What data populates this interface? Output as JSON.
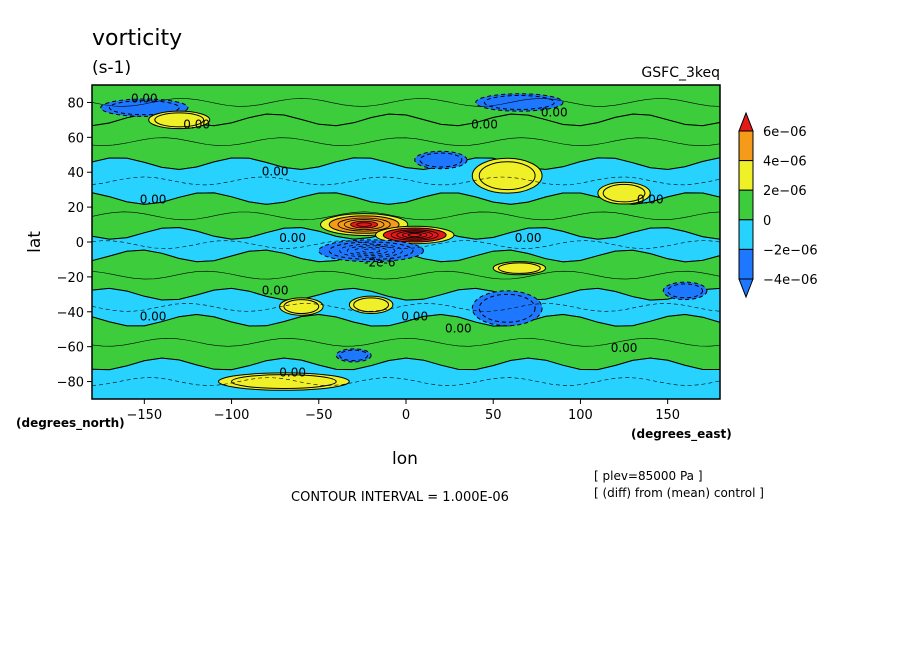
{
  "chart_data": {
    "type": "heatmap",
    "title": "vorticity",
    "units": "(s-1)",
    "model": "GSFC_3keq",
    "xlabel": "lon",
    "ylabel": "lat",
    "x_units": "(degrees_east)",
    "y_units": "(degrees_north)",
    "xlim": [
      -180,
      180
    ],
    "ylim": [
      -90,
      90
    ],
    "x_ticks": [
      -150,
      -100,
      -50,
      0,
      50,
      100,
      150
    ],
    "y_ticks": [
      80,
      60,
      40,
      20,
      0,
      -20,
      -40,
      -60,
      -80
    ],
    "x_tick_labels": [
      "−150",
      "−100",
      "−50",
      "0",
      "50",
      "100",
      "150"
    ],
    "y_tick_labels": [
      "80",
      "60",
      "40",
      "20",
      "0",
      "−20",
      "−40",
      "−60",
      "−80"
    ],
    "colorbar": {
      "levels": [
        -4e-06,
        -2e-06,
        0,
        2e-06,
        4e-06,
        6e-06
      ],
      "labels": [
        "−4e−06",
        "−2e−06",
        "0",
        "2e−06",
        "4e−06",
        "6e−06"
      ],
      "colors": [
        "#1e78ff",
        "#28d2ff",
        "#ffffff",
        "#3ccc3c",
        "#f0f028",
        "#f59a19",
        "#e61919"
      ]
    },
    "contour_interval_text": "CONTOUR INTERVAL = 1.000E-06",
    "annotations": [
      "[ plev=85000 Pa ]",
      "[ (diff) from (mean) control ]"
    ],
    "contour_labels": [
      "0.00",
      "-2e-6"
    ],
    "bands": [
      {
        "lat": [
          70,
          90
        ],
        "value": 0
      },
      {
        "lat": [
          45,
          70
        ],
        "value": 1e-06
      },
      {
        "lat": [
          25,
          45
        ],
        "value": -1e-06
      },
      {
        "lat": [
          5,
          25
        ],
        "value": 1e-06
      },
      {
        "lat": [
          -8,
          5
        ],
        "value": -1e-06
      },
      {
        "lat": [
          -30,
          -8
        ],
        "value": 1e-06
      },
      {
        "lat": [
          -45,
          -30
        ],
        "value": -1e-06
      },
      {
        "lat": [
          -70,
          -45
        ],
        "value": 1e-06
      },
      {
        "lat": [
          -90,
          -70
        ],
        "value": -1e-06
      }
    ],
    "anomalies": [
      {
        "lon": -150,
        "lat": 77,
        "dlon": 20,
        "dlat": 4,
        "value": -3e-06
      },
      {
        "lon": -130,
        "lat": 70,
        "dlon": 14,
        "dlat": 4,
        "value": 3e-06
      },
      {
        "lon": 65,
        "lat": 80,
        "dlon": 20,
        "dlat": 4,
        "value": -3e-06
      },
      {
        "lon": 58,
        "lat": 38,
        "dlon": 16,
        "dlat": 8,
        "value": 3e-06
      },
      {
        "lon": 125,
        "lat": 28,
        "dlon": 12,
        "dlat": 5,
        "value": 3e-06
      },
      {
        "lon": 20,
        "lat": 47,
        "dlon": 12,
        "dlat": 4,
        "value": -3e-06
      },
      {
        "lon": -24,
        "lat": 10,
        "dlon": 20,
        "dlat": 5,
        "value": 4e-06
      },
      {
        "lon": 5,
        "lat": 4,
        "dlon": 18,
        "dlat": 4,
        "value": 7e-06
      },
      {
        "lon": -20,
        "lat": -5,
        "dlon": 24,
        "dlat": 5,
        "value": -5e-06
      },
      {
        "lon": 65,
        "lat": -15,
        "dlon": 12,
        "dlat": 3,
        "value": 3e-06
      },
      {
        "lon": 58,
        "lat": -38,
        "dlon": 16,
        "dlat": 8,
        "value": -3e-06
      },
      {
        "lon": -60,
        "lat": -37,
        "dlon": 10,
        "dlat": 4,
        "value": 3e-06
      },
      {
        "lon": -20,
        "lat": -36,
        "dlon": 10,
        "dlat": 4,
        "value": 3e-06
      },
      {
        "lon": -30,
        "lat": -65,
        "dlon": 8,
        "dlat": 3,
        "value": -3e-06
      },
      {
        "lon": 160,
        "lat": -28,
        "dlon": 10,
        "dlat": 4,
        "value": -3e-06
      },
      {
        "lon": -70,
        "lat": -80,
        "dlon": 30,
        "dlat": 4,
        "value": 3e-06
      }
    ]
  }
}
